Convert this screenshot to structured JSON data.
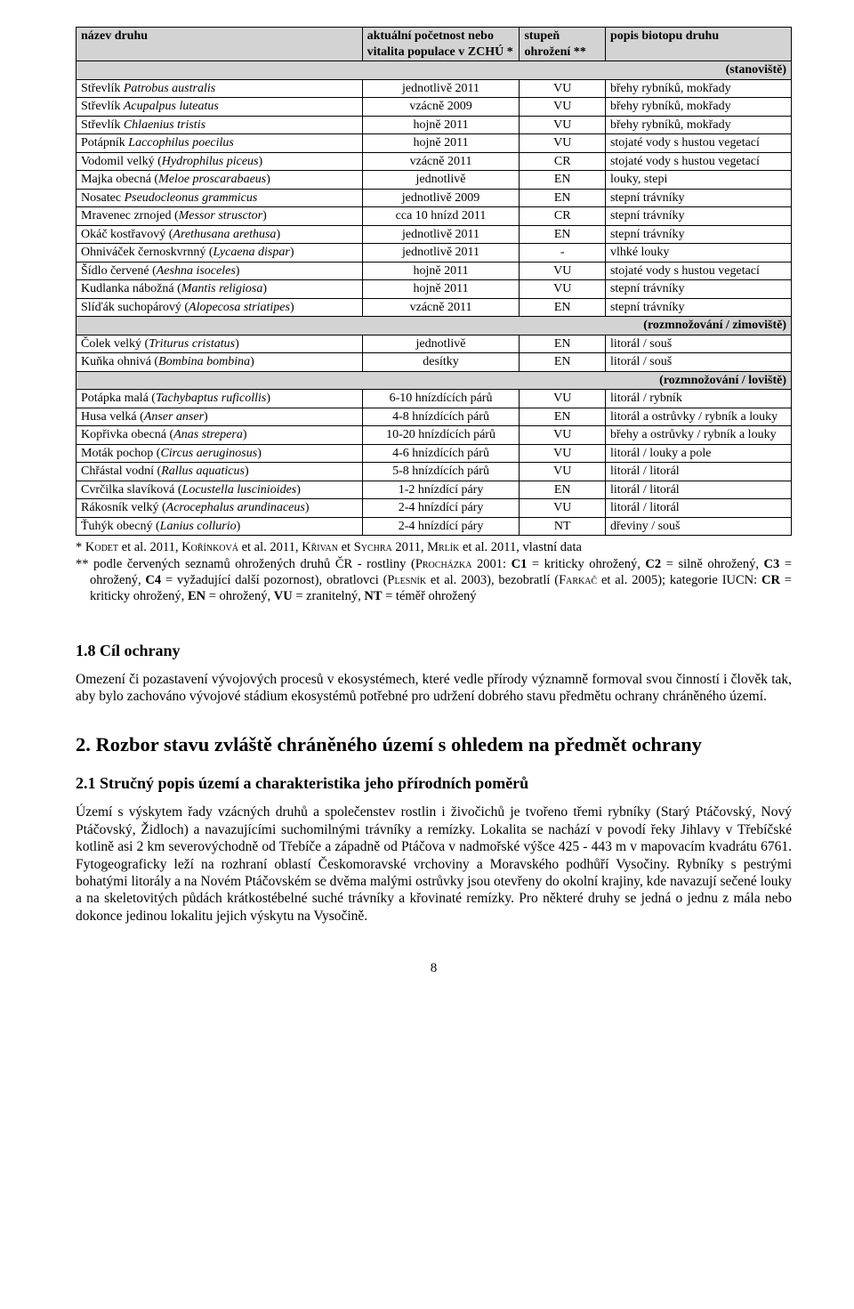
{
  "table": {
    "headers": {
      "c1": "název druhu",
      "c2": "aktuální početnost nebo vitalita populace v ZCHÚ *",
      "c3": "stupeň ohrožení **",
      "c4": "popis biotopu druhu"
    },
    "sections": [
      {
        "label": "(stanoviště)",
        "rows": [
          [
            "Střevlík <i>Patrobus australis</i>",
            "jednotlivě 2011",
            "VU",
            "břehy rybníků, mokřady"
          ],
          [
            "Střevlík <i>Acupalpus luteatus</i>",
            "vzácně 2009",
            "VU",
            "břehy rybníků, mokřady"
          ],
          [
            "Střevlík <i>Chlaenius tristis</i>",
            "hojně 2011",
            "VU",
            "břehy rybníků, mokřady"
          ],
          [
            "Potápník <i>Laccophilus poecilus</i>",
            "hojně 2011",
            "VU",
            "stojaté vody s hustou vegetací"
          ],
          [
            "Vodomil velký (<i>Hydrophilus piceus</i>)",
            "vzácně 2011",
            "CR",
            "stojaté vody s hustou vegetací"
          ],
          [
            "Majka obecná (<i>Meloe proscarabaeus</i>)",
            "jednotlivě",
            "EN",
            "louky, stepi"
          ],
          [
            "Nosatec <i>Pseudocleonus grammicus</i>",
            "jednotlivě 2009",
            "EN",
            "stepní trávníky"
          ],
          [
            "Mravenec zrnojed (<i>Messor strusctor</i>)",
            "cca 10 hnízd 2011",
            "CR",
            "stepní trávníky"
          ],
          [
            "Okáč kostřavový (<i>Arethusana arethusa</i>)",
            "jednotlivě 2011",
            "EN",
            "stepní trávníky"
          ],
          [
            "Ohniváček černoskvrnný (<i>Lycaena dispar</i>)",
            "jednotlivě 2011",
            "-",
            "vlhké louky"
          ],
          [
            "Šídlo červené (<i>Aeshna isoceles</i>)",
            "hojně 2011",
            "VU",
            "stojaté vody s hustou vegetací"
          ],
          [
            "Kudlanka nábožná (<i>Mantis religiosa</i>)",
            "hojně 2011",
            "VU",
            "stepní trávníky"
          ],
          [
            "Slíďák suchopárový (<i>Alopecosa striatipes</i>)",
            "vzácně 2011",
            "EN",
            "stepní trávníky"
          ]
        ]
      },
      {
        "label": "(rozmnožování / zimoviště)",
        "rows": [
          [
            "Čolek velký (<i>Triturus cristatus</i>)",
            "jednotlivě",
            "EN",
            "litorál / souš"
          ],
          [
            "Kuňka ohnivá (<i>Bombina bombina</i>)",
            "desítky",
            "EN",
            "litorál / souš"
          ]
        ]
      },
      {
        "label": "(rozmnožování / loviště)",
        "rows": [
          [
            "Potápka malá (<i>Tachybaptus ruficollis</i>)",
            "6-10 hnízdících párů",
            "VU",
            "litorál / rybník"
          ],
          [
            "Husa velká (<i>Anser anser</i>)",
            "4-8 hnízdících párů",
            "EN",
            "litorál a ostrůvky / rybník a louky"
          ],
          [
            "Kopřivka obecná (<i>Anas strepera</i>)",
            "10-20 hnízdících párů",
            "VU",
            "břehy a ostrůvky / rybník a louky"
          ],
          [
            "Moták pochop (<i>Circus aeruginosus</i>)",
            "4-6 hnízdících párů",
            "VU",
            "litorál / louky a pole"
          ],
          [
            "Chřástal vodní (<i>Rallus aquaticus</i>)",
            "5-8 hnízdících párů",
            "VU",
            "litorál / litorál"
          ],
          [
            "Cvrčilka slavíková (<i>Locustella luscinioides</i>)",
            "1-2 hnízdící páry",
            "EN",
            "litorál / litorál"
          ],
          [
            "Rákosník velký (<i>Acrocephalus arundinaceus</i>)",
            "2-4 hnízdící páry",
            "VU",
            "litorál / litorál"
          ],
          [
            "Ťuhýk obecný (<i>Lanius collurio</i>)",
            "2-4 hnízdící páry",
            "NT",
            "dřeviny / souš"
          ]
        ]
      }
    ]
  },
  "notes": {
    "l1a": "* ",
    "l1b": " et al. 2011, ",
    "l1c": " et al. 2011, ",
    "l1d": " et ",
    "l1e": " 2011, ",
    "l1f": " et al. 2011, vlastní data",
    "kodet": "Kodet",
    "korinkova": "Kořínková",
    "krivan": "Křivan",
    "sychra": "Sychra",
    "mrlik": "Mrlík",
    "l2": "** podle červených seznamů ohrožených druhů ČR - rostliny (",
    "prochazka": "Procházka",
    "l2b": " 2001: ",
    "c1": "C1",
    "l2c": " = kriticky ohrožený, ",
    "c2": "C2",
    "l2d": " = silně ohrožený, ",
    "c3": "C3",
    "l2e": " = ohrožený, ",
    "c4": "C4",
    "l2f": " = vyžadující další pozornost), obratlovci (",
    "plesnik": "Plesník",
    "l2g": " et al. 2003), bezobratlí (",
    "farkac": "Farkač",
    "l2h": " et al. 2005); kategorie IUCN: ",
    "cr": "CR",
    "l2i": " = kriticky ohrožený, ",
    "en": "EN",
    "l2j": " = ohrožený, ",
    "vu": "VU",
    "l2k": " = zranitelný, ",
    "nt": "NT",
    "l2l": " = téměř ohrožený"
  },
  "h18": "1.8 Cíl ochrany",
  "p18": "Omezení či pozastavení vývojových procesů v ekosystémech, které vedle přírody významně formoval svou činností i člověk tak, aby bylo zachováno vývojové stádium ekosystémů potřebné pro udržení dobrého stavu předmětu ochrany chráněného území.",
  "h2": "2. Rozbor stavu zvláště chráněného území s ohledem na předmět ochrany",
  "h21": "2.1 Stručný popis území a charakteristika jeho přírodních poměrů",
  "p21": "Území s výskytem řady vzácných druhů a společenstev rostlin i živočichů je tvořeno třemi rybníky (Starý Ptáčovský, Nový Ptáčovský, Židloch) a navazujícími suchomilnými trávníky a remízky. Lokalita se nachází v povodí řeky Jihlavy v Třebíčské kotlině asi 2 km severovýchodně od Třebíče a západně od Ptáčova v nadmořské výšce 425 - 443 m v mapovacím kvadrátu 6761. Fytogeograficky leží na rozhraní oblastí Českomoravské vrchoviny a Moravského podhůří Vysočiny. Rybníky s pestrými bohatými litorály a na Novém Ptáčovském se dvěma malými ostrůvky jsou otevřeny do okolní krajiny, kde navazují sečené louky a na skeletovitých půdách krátkostébelné suché trávníky a křovinaté remízky. Pro některé druhy se jedná o jednu z mála nebo dokonce jedinou lokalitu jejich výskytu na Vysočině.",
  "pageno": "8"
}
